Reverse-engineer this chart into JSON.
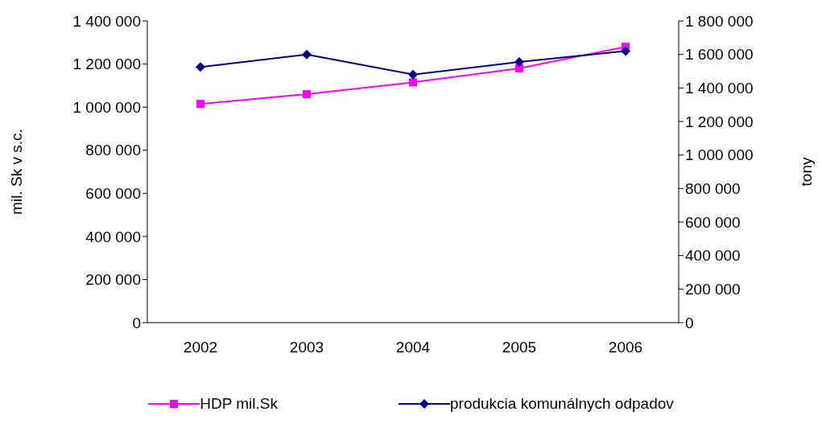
{
  "chart_data": {
    "type": "line",
    "categories": [
      "2002",
      "2003",
      "2004",
      "2005",
      "2006"
    ],
    "ylabel": "mil. Sk v s.c.",
    "y2label": "tony",
    "series": [
      {
        "name": "HDP mil.Sk",
        "color": "#ff00ff",
        "marker": "square",
        "values": [
          1015000,
          1060000,
          1115000,
          1180000,
          1280000
        ]
      },
      {
        "name": "produkcia komunálnych odpadov",
        "color": "#000080",
        "marker": "diamond",
        "axis": "y2",
        "values": [
          1525000,
          1600000,
          1480000,
          1555000,
          1620000
        ]
      }
    ],
    "ylim": [
      0,
      1400000
    ],
    "yticks": [
      0,
      {
        "value": 200000,
        "label": "200 000"
      },
      {
        "value": 400000,
        "label": "400 000"
      },
      {
        "value": 600000,
        "label": "600 000"
      },
      {
        "value": 800000,
        "label": "800 000"
      },
      {
        "value": 1000000,
        "label": "1 000 000"
      },
      {
        "value": 1200000,
        "label": "1 200 000"
      },
      {
        "value": 1400000,
        "label": "1 400 000"
      }
    ],
    "y2lim": [
      0,
      1800000
    ],
    "y2ticks": [
      0,
      {
        "value": 200000,
        "label": "200 000"
      },
      {
        "value": 400000,
        "label": "400 000"
      },
      {
        "value": 600000,
        "label": "600 000"
      },
      {
        "value": 800000,
        "label": "800 000"
      },
      {
        "value": 1000000,
        "label": "1 000 000"
      },
      {
        "value": 1200000,
        "label": "1 200 000"
      },
      {
        "value": 1400000,
        "label": "1 400 000"
      },
      {
        "value": 1600000,
        "label": "1 600 000"
      },
      {
        "value": 1800000,
        "label": "1 800 000"
      }
    ],
    "grid": false,
    "legend": "bottom"
  }
}
